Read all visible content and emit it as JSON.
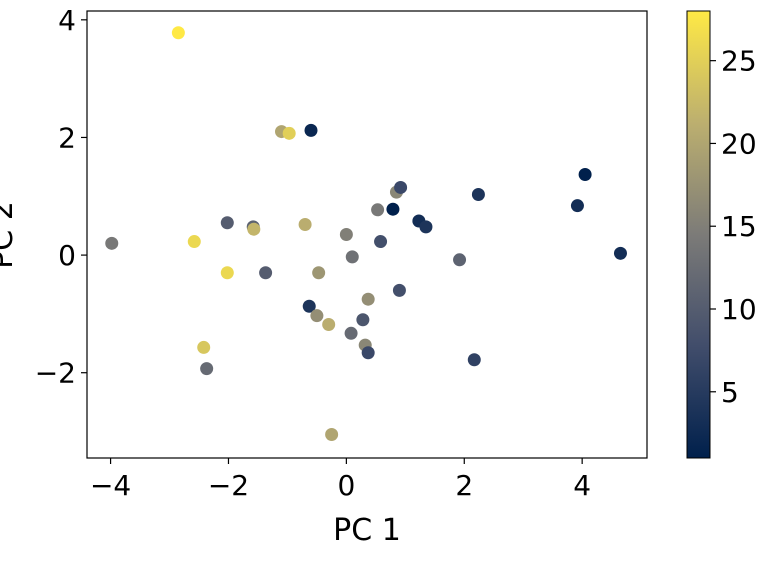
{
  "chart_data": {
    "type": "scatter",
    "xlabel": "PC 1",
    "ylabel": "PC 2",
    "xlim": [
      -4.4,
      5.1
    ],
    "ylim": [
      -3.45,
      4.15
    ],
    "xticks": [
      -4,
      -2,
      0,
      2,
      4
    ],
    "yticks": [
      -2,
      0,
      2,
      4
    ],
    "tick_labels": {
      "x": [
        "−4",
        "−2",
        "0",
        "2",
        "4"
      ],
      "y": [
        "−2",
        "0",
        "2",
        "4"
      ]
    },
    "grid": false,
    "colormap": "cividis",
    "colorbar": {
      "range": [
        1,
        28
      ],
      "ticks": [
        5,
        10,
        15,
        20,
        25
      ],
      "tick_labels": [
        "5",
        "10",
        "15",
        "20",
        "25"
      ],
      "label": ""
    },
    "points": [
      {
        "x": -2.85,
        "y": 3.78,
        "c": 28
      },
      {
        "x": -1.1,
        "y": 2.1,
        "c": 20
      },
      {
        "x": -0.97,
        "y": 2.07,
        "c": 25
      },
      {
        "x": -0.6,
        "y": 2.12,
        "c": 2
      },
      {
        "x": -3.98,
        "y": 0.2,
        "c": 14
      },
      {
        "x": -2.58,
        "y": 0.23,
        "c": 26
      },
      {
        "x": -2.02,
        "y": 0.55,
        "c": 10
      },
      {
        "x": -1.58,
        "y": 0.48,
        "c": 11
      },
      {
        "x": -1.57,
        "y": 0.44,
        "c": 22
      },
      {
        "x": -2.02,
        "y": -0.3,
        "c": 26
      },
      {
        "x": -1.37,
        "y": -0.3,
        "c": 10
      },
      {
        "x": -0.7,
        "y": 0.52,
        "c": 21
      },
      {
        "x": -0.47,
        "y": -0.3,
        "c": 18
      },
      {
        "x": 0.0,
        "y": 0.35,
        "c": 15
      },
      {
        "x": 0.1,
        "y": -0.03,
        "c": 13
      },
      {
        "x": 0.53,
        "y": 0.77,
        "c": 14
      },
      {
        "x": 0.58,
        "y": 0.23,
        "c": 8
      },
      {
        "x": 0.79,
        "y": 0.78,
        "c": 1
      },
      {
        "x": 0.85,
        "y": 1.07,
        "c": 16
      },
      {
        "x": 0.92,
        "y": 1.15,
        "c": 7
      },
      {
        "x": 1.23,
        "y": 0.58,
        "c": 3
      },
      {
        "x": 1.35,
        "y": 0.48,
        "c": 4
      },
      {
        "x": 2.24,
        "y": 1.03,
        "c": 4
      },
      {
        "x": 1.92,
        "y": -0.08,
        "c": 11
      },
      {
        "x": 4.05,
        "y": 1.37,
        "c": 1
      },
      {
        "x": 3.92,
        "y": 0.84,
        "c": 3
      },
      {
        "x": 4.65,
        "y": 0.03,
        "c": 3
      },
      {
        "x": -0.63,
        "y": -0.87,
        "c": 4
      },
      {
        "x": -0.5,
        "y": -1.03,
        "c": 17
      },
      {
        "x": -0.3,
        "y": -1.18,
        "c": 21
      },
      {
        "x": 0.28,
        "y": -1.1,
        "c": 9
      },
      {
        "x": 0.08,
        "y": -1.33,
        "c": 12
      },
      {
        "x": 0.32,
        "y": -1.53,
        "c": 16
      },
      {
        "x": 0.37,
        "y": -1.66,
        "c": 7
      },
      {
        "x": 0.37,
        "y": -0.75,
        "c": 17
      },
      {
        "x": 0.9,
        "y": -0.6,
        "c": 8
      },
      {
        "x": 2.17,
        "y": -1.78,
        "c": 6
      },
      {
        "x": -2.42,
        "y": -1.57,
        "c": 24
      },
      {
        "x": -2.37,
        "y": -1.93,
        "c": 12
      },
      {
        "x": -0.25,
        "y": -3.05,
        "c": 20
      }
    ]
  }
}
